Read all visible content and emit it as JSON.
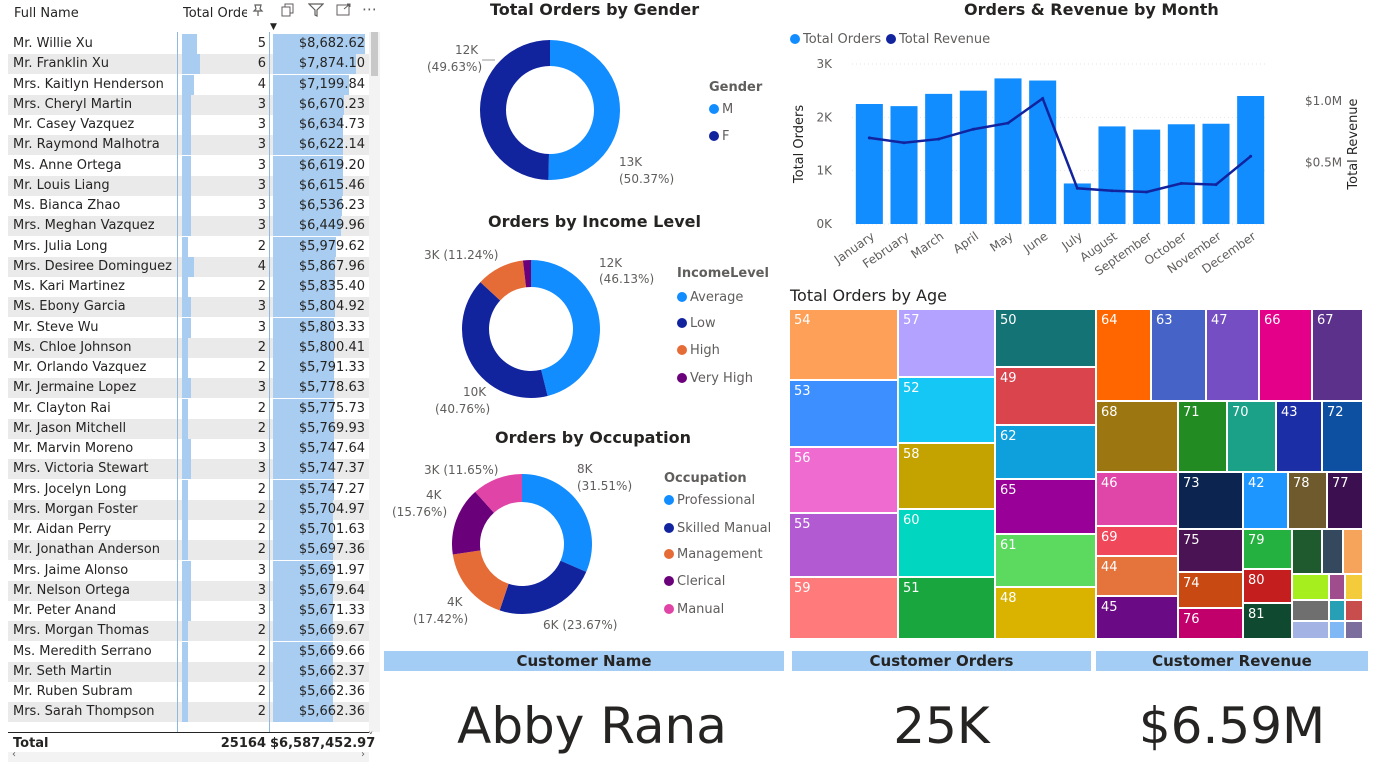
{
  "table": {
    "headers": {
      "name": "Full Name",
      "orders": "Total Orde",
      "revenue": ""
    },
    "icons": [
      "pin-icon",
      "copy-icon",
      "filter-icon",
      "expand-icon",
      "more-icon"
    ],
    "rows": [
      {
        "name": "Mr. Willie Xu",
        "orders": "5",
        "revenue": "$8,682.62",
        "o": 5,
        "r": 8682.62
      },
      {
        "name": "Mr. Franklin Xu",
        "orders": "6",
        "revenue": "$7,874.10",
        "o": 6,
        "r": 7874.1
      },
      {
        "name": "Mrs. Kaitlyn Henderson",
        "orders": "4",
        "revenue": "$7,199.84",
        "o": 4,
        "r": 7199.84
      },
      {
        "name": "Mrs. Cheryl Martin",
        "orders": "3",
        "revenue": "$6,670.23",
        "o": 3,
        "r": 6670.23
      },
      {
        "name": "Mr. Casey Vazquez",
        "orders": "3",
        "revenue": "$6,634.73",
        "o": 3,
        "r": 6634.73
      },
      {
        "name": "Mr. Raymond Malhotra",
        "orders": "3",
        "revenue": "$6,622.14",
        "o": 3,
        "r": 6622.14
      },
      {
        "name": "Ms. Anne Ortega",
        "orders": "3",
        "revenue": "$6,619.20",
        "o": 3,
        "r": 6619.2
      },
      {
        "name": "Mr. Louis Liang",
        "orders": "3",
        "revenue": "$6,615.46",
        "o": 3,
        "r": 6615.46
      },
      {
        "name": "Ms. Bianca Zhao",
        "orders": "3",
        "revenue": "$6,536.23",
        "o": 3,
        "r": 6536.23
      },
      {
        "name": "Mrs. Meghan Vazquez",
        "orders": "3",
        "revenue": "$6,449.96",
        "o": 3,
        "r": 6449.96
      },
      {
        "name": "Mrs. Julia Long",
        "orders": "2",
        "revenue": "$5,979.62",
        "o": 2,
        "r": 5979.62
      },
      {
        "name": "Mrs. Desiree Dominguez",
        "orders": "4",
        "revenue": "$5,867.96",
        "o": 4,
        "r": 5867.96
      },
      {
        "name": "Ms. Kari Martinez",
        "orders": "2",
        "revenue": "$5,835.40",
        "o": 2,
        "r": 5835.4
      },
      {
        "name": "Ms. Ebony Garcia",
        "orders": "3",
        "revenue": "$5,804.92",
        "o": 3,
        "r": 5804.92
      },
      {
        "name": "Mr. Steve Wu",
        "orders": "3",
        "revenue": "$5,803.33",
        "o": 3,
        "r": 5803.33
      },
      {
        "name": "Ms. Chloe Johnson",
        "orders": "2",
        "revenue": "$5,800.41",
        "o": 2,
        "r": 5800.41
      },
      {
        "name": "Mr. Orlando Vazquez",
        "orders": "2",
        "revenue": "$5,791.33",
        "o": 2,
        "r": 5791.33
      },
      {
        "name": "Mr. Jermaine Lopez",
        "orders": "3",
        "revenue": "$5,778.63",
        "o": 3,
        "r": 5778.63
      },
      {
        "name": "Mr. Clayton Rai",
        "orders": "2",
        "revenue": "$5,775.73",
        "o": 2,
        "r": 5775.73
      },
      {
        "name": "Mr. Jason Mitchell",
        "orders": "2",
        "revenue": "$5,769.93",
        "o": 2,
        "r": 5769.93
      },
      {
        "name": "Mr. Marvin Moreno",
        "orders": "3",
        "revenue": "$5,747.64",
        "o": 3,
        "r": 5747.64
      },
      {
        "name": "Mrs. Victoria Stewart",
        "orders": "3",
        "revenue": "$5,747.37",
        "o": 3,
        "r": 5747.37
      },
      {
        "name": "Mrs. Jocelyn Long",
        "orders": "2",
        "revenue": "$5,747.27",
        "o": 2,
        "r": 5747.27
      },
      {
        "name": "Mrs. Morgan Foster",
        "orders": "2",
        "revenue": "$5,704.97",
        "o": 2,
        "r": 5704.97
      },
      {
        "name": "Mr. Aidan Perry",
        "orders": "2",
        "revenue": "$5,701.63",
        "o": 2,
        "r": 5701.63
      },
      {
        "name": "Mr. Jonathan Anderson",
        "orders": "2",
        "revenue": "$5,697.36",
        "o": 2,
        "r": 5697.36
      },
      {
        "name": "Mrs. Jaime Alonso",
        "orders": "3",
        "revenue": "$5,691.97",
        "o": 3,
        "r": 5691.97
      },
      {
        "name": "Mr. Nelson Ortega",
        "orders": "3",
        "revenue": "$5,679.64",
        "o": 3,
        "r": 5679.64
      },
      {
        "name": "Mr. Peter Anand",
        "orders": "3",
        "revenue": "$5,671.33",
        "o": 3,
        "r": 5671.33
      },
      {
        "name": "Mrs. Morgan Thomas",
        "orders": "2",
        "revenue": "$5,669.67",
        "o": 2,
        "r": 5669.67
      },
      {
        "name": "Ms. Meredith Serrano",
        "orders": "2",
        "revenue": "$5,669.66",
        "o": 2,
        "r": 5669.66
      },
      {
        "name": "Mr. Seth Martin",
        "orders": "2",
        "revenue": "$5,662.37",
        "o": 2,
        "r": 5662.37
      },
      {
        "name": "Mr. Ruben Subram",
        "orders": "2",
        "revenue": "$5,662.36",
        "o": 2,
        "r": 5662.36
      },
      {
        "name": "Mrs. Sarah Thompson",
        "orders": "2",
        "revenue": "$5,662.36",
        "o": 2,
        "r": 5662.36
      }
    ],
    "total": {
      "label": "Total",
      "orders": "25164",
      "revenue": "$6,587,452.97"
    }
  },
  "gender": {
    "title": "Total Orders by Gender",
    "legend_title": "Gender",
    "slices": [
      {
        "name": "M",
        "value": 13000,
        "pct": 50.37,
        "label": "13K",
        "pct_label": "(50.37%)",
        "color": "#118dff"
      },
      {
        "name": "F",
        "value": 12000,
        "pct": 49.63,
        "label": "12K",
        "pct_label": "(49.63%)",
        "color": "#12239e"
      }
    ]
  },
  "income": {
    "title": "Orders by Income Level",
    "legend_title": "IncomeLevel",
    "slices": [
      {
        "name": "Average",
        "pct": 46.13,
        "label": "12K",
        "pct_label": "(46.13%)",
        "color": "#118dff"
      },
      {
        "name": "Low",
        "pct": 40.76,
        "label": "10K",
        "pct_label": "(40.76%)",
        "color": "#12239e"
      },
      {
        "name": "High",
        "pct": 11.24,
        "label": "3K (11.24%)",
        "pct_label": "",
        "color": "#e66c37"
      },
      {
        "name": "Very High",
        "pct": 1.87,
        "label": "",
        "pct_label": "",
        "color": "#6b007b"
      }
    ]
  },
  "occupation": {
    "title": "Orders by Occupation",
    "legend_title": "Occupation",
    "slices": [
      {
        "name": "Professional",
        "pct": 31.51,
        "label": "8K",
        "pct_label": "(31.51%)",
        "color": "#118dff"
      },
      {
        "name": "Skilled Manual",
        "pct": 23.67,
        "label": "6K (23.67%)",
        "pct_label": "",
        "color": "#12239e"
      },
      {
        "name": "Management",
        "pct": 17.42,
        "label": "4K",
        "pct_label": "(17.42%)",
        "color": "#e66c37"
      },
      {
        "name": "Clerical",
        "pct": 15.76,
        "label": "4K",
        "pct_label": "(15.76%)",
        "color": "#6b007b"
      },
      {
        "name": "Manual",
        "pct": 11.65,
        "label": "3K (11.65%)",
        "pct_label": "",
        "color": "#e044a7"
      }
    ]
  },
  "chart_data": {
    "type": "bar",
    "title": "Orders & Revenue by Month",
    "categories": [
      "January",
      "February",
      "March",
      "April",
      "May",
      "June",
      "July",
      "August",
      "September",
      "October",
      "November",
      "December"
    ],
    "series": [
      {
        "name": "Total Orders",
        "values": [
          2250,
          2210,
          2440,
          2500,
          2730,
          2690,
          760,
          1830,
          1770,
          1870,
          1880,
          2400
        ],
        "color": "#118dff"
      },
      {
        "name": "Total Revenue",
        "values": [
          0.7,
          0.66,
          0.69,
          0.77,
          0.82,
          1.02,
          0.29,
          0.27,
          0.26,
          0.33,
          0.32,
          0.55
        ],
        "color": "#12239e"
      }
    ],
    "ylabel": "Total Orders",
    "y2label": "Total Revenue",
    "y_ticks": [
      "3K",
      "2K",
      "1K",
      "0K"
    ],
    "y2_ticks": [
      "$1.0M",
      "$0.5M"
    ],
    "ylim": [
      0,
      3000
    ],
    "y2lim": [
      0,
      1.3
    ]
  },
  "age": {
    "title": "Total Orders by Age",
    "cells": [
      {
        "label": "54",
        "color": "#ffa058"
      },
      {
        "label": "53",
        "color": "#3d8fff"
      },
      {
        "label": "56",
        "color": "#f06bcf"
      },
      {
        "label": "55",
        "color": "#b25ad2"
      },
      {
        "label": "59",
        "color": "#ff7a7a"
      },
      {
        "label": "57",
        "color": "#b3a2ff"
      },
      {
        "label": "52",
        "color": "#15c7f5"
      },
      {
        "label": "58",
        "color": "#c4a300"
      },
      {
        "label": "60",
        "color": "#00d6c0"
      },
      {
        "label": "51",
        "color": "#1aa63e"
      },
      {
        "label": "50",
        "color": "#137375"
      },
      {
        "label": "49",
        "color": "#d9444d"
      },
      {
        "label": "62",
        "color": "#0e9fdd"
      },
      {
        "label": "65",
        "color": "#980097"
      },
      {
        "label": "61",
        "color": "#5cd95f"
      },
      {
        "label": "48",
        "color": "#d9b300"
      },
      {
        "label": "64",
        "color": "#ff6600"
      },
      {
        "label": "63",
        "color": "#4664c8"
      },
      {
        "label": "47",
        "color": "#744ec2"
      },
      {
        "label": "66",
        "color": "#e5008a"
      },
      {
        "label": "67",
        "color": "#5b318c"
      },
      {
        "label": "68",
        "color": "#9c7611"
      },
      {
        "label": "71",
        "color": "#228b22"
      },
      {
        "label": "70",
        "color": "#1aa188"
      },
      {
        "label": "43",
        "color": "#1c2ea6"
      },
      {
        "label": "72",
        "color": "#0d4fa0"
      },
      {
        "label": "46",
        "color": "#e046a8"
      },
      {
        "label": "73",
        "color": "#0b2550"
      },
      {
        "label": "42",
        "color": "#1e96ff"
      },
      {
        "label": "78",
        "color": "#6e5a2c"
      },
      {
        "label": "77",
        "color": "#3c1050"
      },
      {
        "label": "69",
        "color": "#f0475a"
      },
      {
        "label": "75",
        "color": "#4a1354"
      },
      {
        "label": "44",
        "color": "#e4733c"
      },
      {
        "label": "74",
        "color": "#c84a12"
      },
      {
        "label": "79",
        "color": "#25b140"
      },
      {
        "label": "80",
        "color": "#c41e1e"
      },
      {
        "label": "45",
        "color": "#6a0a84"
      },
      {
        "label": "76",
        "color": "#c2006c"
      },
      {
        "label": "81",
        "color": "#0f4a30"
      }
    ]
  },
  "cards": [
    {
      "header": "Customer Name",
      "value": "Abby Rana"
    },
    {
      "header": "Customer Orders",
      "value": "25K"
    },
    {
      "header": "Customer Revenue",
      "value": "$6.59M"
    }
  ]
}
